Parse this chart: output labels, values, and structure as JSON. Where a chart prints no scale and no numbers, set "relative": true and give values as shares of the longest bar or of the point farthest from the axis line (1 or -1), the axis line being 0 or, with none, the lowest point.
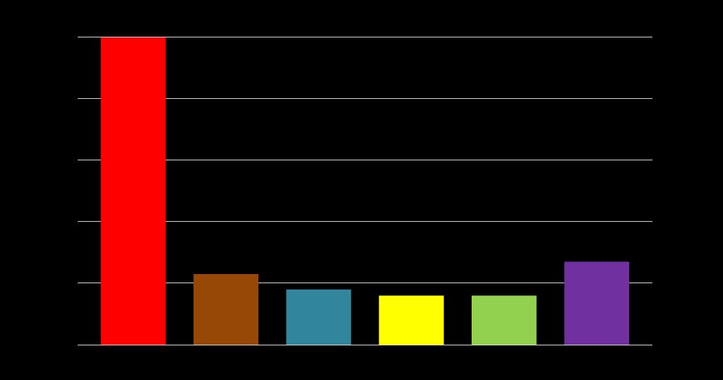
{
  "chart_data": {
    "type": "bar",
    "relative": true,
    "categories": [
      null,
      null,
      null,
      null,
      null,
      null
    ],
    "values": [
      1,
      0.23,
      0.18,
      0.16,
      0.16,
      0.27
    ],
    "colors": [
      "#ff0000",
      "#974706",
      "#31859c",
      "#ffff00",
      "#92d050",
      "#7030a0"
    ],
    "grid": "y"
  }
}
